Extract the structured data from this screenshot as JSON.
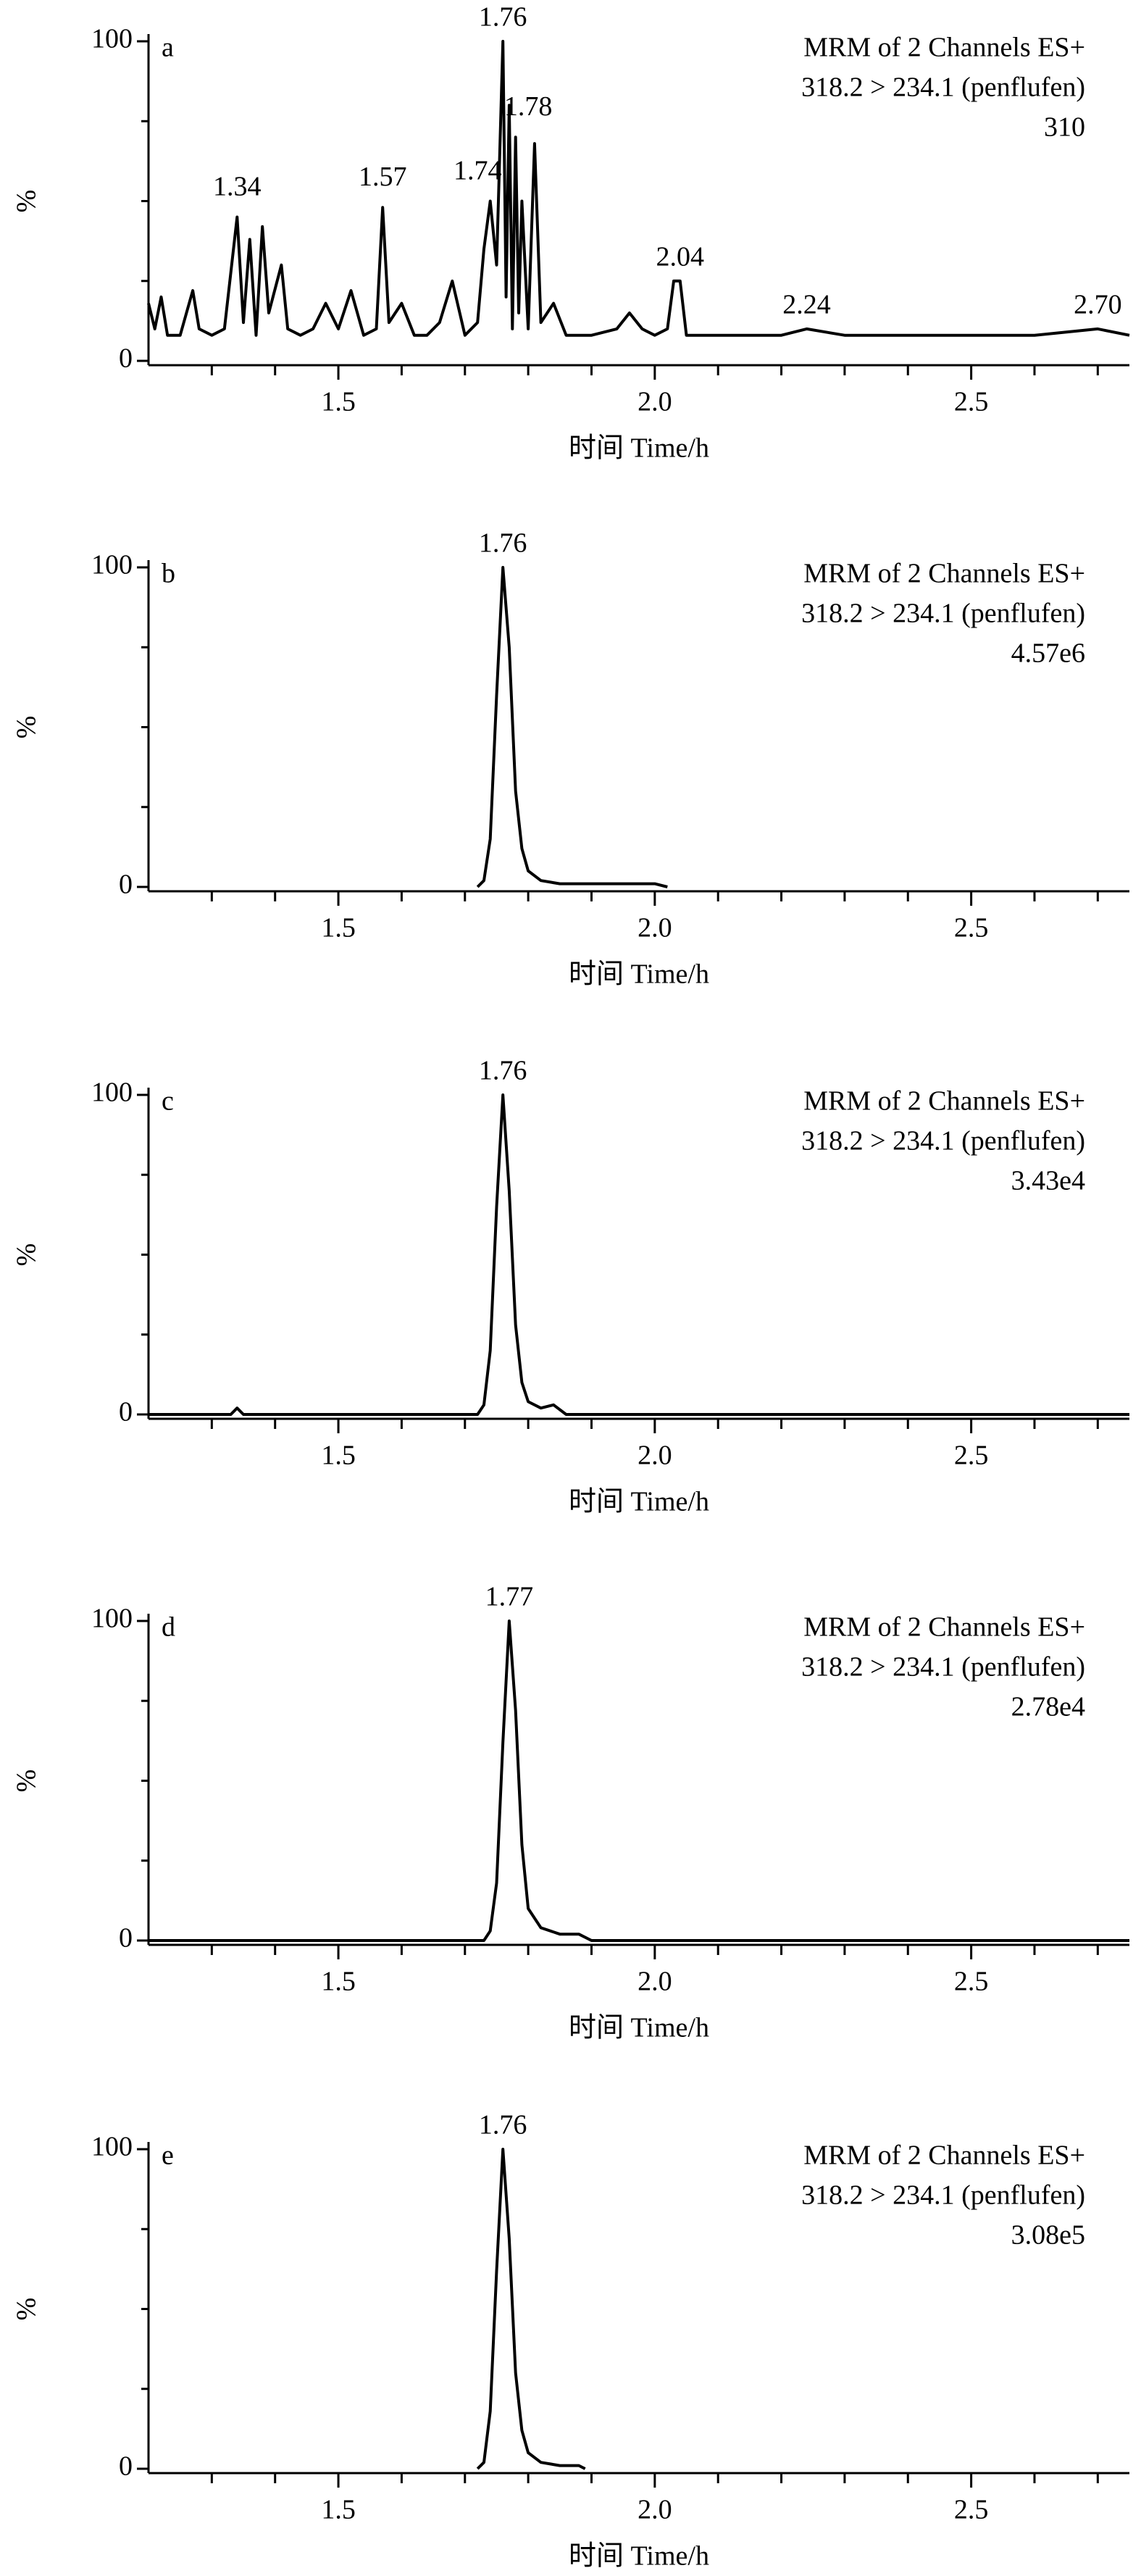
{
  "chart_data": [
    {
      "type": "line",
      "title": "a",
      "info": [
        "MRM of 2 Channels ES+",
        "318.2 > 234.1 (penflufen)",
        "310"
      ],
      "ylabel": "%",
      "xlabel": "时间 Time/h",
      "color": "#000000",
      "xlim": [
        1.2,
        2.75
      ],
      "xticks": [
        1.5,
        {
          "value": 2,
          "label": "2.0"
        },
        2.5
      ],
      "xminorticks": [
        1.3,
        1.4,
        1.6,
        1.7,
        1.8,
        1.9,
        2.1,
        2.2,
        2.3,
        2.4,
        2.6,
        2.7
      ],
      "ylim": [
        0,
        100
      ],
      "yticks": [
        0,
        100
      ],
      "yminorticks": [
        25,
        50,
        75
      ],
      "x": [
        1.2,
        1.21,
        1.22,
        1.23,
        1.25,
        1.27,
        1.28,
        1.3,
        1.32,
        1.34,
        1.35,
        1.36,
        1.37,
        1.38,
        1.39,
        1.41,
        1.42,
        1.44,
        1.46,
        1.48,
        1.5,
        1.52,
        1.54,
        1.56,
        1.57,
        1.58,
        1.6,
        1.62,
        1.64,
        1.66,
        1.68,
        1.7,
        1.72,
        1.73,
        1.74,
        1.75,
        1.76,
        1.765,
        1.77,
        1.775,
        1.78,
        1.785,
        1.79,
        1.8,
        1.81,
        1.82,
        1.84,
        1.86,
        1.9,
        1.94,
        1.96,
        1.98,
        2.0,
        2.02,
        2.03,
        2.04,
        2.05,
        2.1,
        2.2,
        2.24,
        2.3,
        2.4,
        2.5,
        2.6,
        2.7,
        2.75
      ],
      "values": [
        18,
        10,
        20,
        8,
        8,
        22,
        10,
        8,
        10,
        45,
        12,
        38,
        8,
        42,
        15,
        30,
        10,
        8,
        10,
        18,
        10,
        22,
        8,
        10,
        48,
        12,
        18,
        8,
        8,
        12,
        25,
        8,
        12,
        35,
        50,
        30,
        100,
        20,
        80,
        10,
        70,
        15,
        50,
        10,
        68,
        12,
        18,
        8,
        8,
        10,
        15,
        10,
        8,
        10,
        25,
        25,
        8,
        8,
        8,
        10,
        8,
        8,
        8,
        8,
        10,
        8
      ],
      "annotations": [
        {
          "text": "1.34",
          "x": 1.34,
          "y": 47
        },
        {
          "text": "1.57",
          "x": 1.57,
          "y": 50
        },
        {
          "text": "1.74",
          "x": 1.72,
          "y": 52
        },
        {
          "text": "1.76",
          "x": 1.76,
          "y": 100
        },
        {
          "text": "1.78",
          "x": 1.8,
          "y": 72
        },
        {
          "text": "2.04",
          "x": 2.04,
          "y": 25
        },
        {
          "text": "2.24",
          "x": 2.24,
          "y": 10
        },
        {
          "text": "2.70",
          "x": 2.7,
          "y": 10
        }
      ]
    },
    {
      "type": "line",
      "title": "b",
      "info": [
        "MRM of 2 Channels ES+",
        "318.2 > 234.1 (penflufen)",
        "4.57e6"
      ],
      "ylabel": "%",
      "xlabel": "时间 Time/h",
      "color": "#000000",
      "xlim": [
        1.2,
        2.75
      ],
      "xticks": [
        1.5,
        {
          "value": 2,
          "label": "2.0"
        },
        2.5
      ],
      "xminorticks": [
        1.3,
        1.4,
        1.6,
        1.7,
        1.8,
        1.9,
        2.1,
        2.2,
        2.3,
        2.4,
        2.6,
        2.7
      ],
      "ylim": [
        0,
        100
      ],
      "yticks": [
        0,
        100
      ],
      "yminorticks": [
        25,
        50,
        75
      ],
      "x": [
        1.72,
        1.73,
        1.74,
        1.75,
        1.76,
        1.77,
        1.78,
        1.79,
        1.8,
        1.82,
        1.85,
        1.9,
        2.0,
        2.02
      ],
      "values": [
        0,
        2,
        15,
        60,
        100,
        75,
        30,
        12,
        5,
        2,
        1,
        1,
        1,
        0
      ],
      "annotations": [
        {
          "text": "1.76",
          "x": 1.76,
          "y": 100
        }
      ]
    },
    {
      "type": "line",
      "title": "c",
      "info": [
        "MRM of 2 Channels ES+",
        "318.2 > 234.1 (penflufen)",
        "3.43e4"
      ],
      "ylabel": "%",
      "xlabel": "时间 Time/h",
      "color": "#000000",
      "xlim": [
        1.2,
        2.75
      ],
      "xticks": [
        1.5,
        {
          "value": 2,
          "label": "2.0"
        },
        2.5
      ],
      "xminorticks": [
        1.3,
        1.4,
        1.6,
        1.7,
        1.8,
        1.9,
        2.1,
        2.2,
        2.3,
        2.4,
        2.6,
        2.7
      ],
      "ylim": [
        0,
        100
      ],
      "yticks": [
        0,
        100
      ],
      "yminorticks": [
        25,
        50,
        75
      ],
      "x": [
        1.2,
        1.33,
        1.34,
        1.35,
        1.72,
        1.73,
        1.74,
        1.75,
        1.76,
        1.77,
        1.78,
        1.79,
        1.8,
        1.82,
        1.84,
        1.86,
        2.75
      ],
      "values": [
        0,
        0,
        2,
        0,
        0,
        3,
        20,
        65,
        100,
        70,
        28,
        10,
        4,
        2,
        3,
        0,
        0
      ],
      "annotations": [
        {
          "text": "1.76",
          "x": 1.76,
          "y": 100
        }
      ]
    },
    {
      "type": "line",
      "title": "d",
      "info": [
        "MRM of 2 Channels ES+",
        "318.2 > 234.1 (penflufen)",
        "2.78e4"
      ],
      "ylabel": "%",
      "xlabel": "时间 Time/h",
      "color": "#000000",
      "xlim": [
        1.2,
        2.75
      ],
      "xticks": [
        1.5,
        {
          "value": 2,
          "label": "2.0"
        },
        2.5
      ],
      "xminorticks": [
        1.3,
        1.4,
        1.6,
        1.7,
        1.8,
        1.9,
        2.1,
        2.2,
        2.3,
        2.4,
        2.6,
        2.7
      ],
      "ylim": [
        0,
        100
      ],
      "yticks": [
        0,
        100
      ],
      "yminorticks": [
        25,
        50,
        75
      ],
      "x": [
        1.2,
        1.73,
        1.74,
        1.75,
        1.76,
        1.77,
        1.78,
        1.79,
        1.8,
        1.82,
        1.85,
        1.88,
        1.9,
        2.75
      ],
      "values": [
        0,
        0,
        3,
        18,
        62,
        100,
        72,
        30,
        10,
        4,
        2,
        2,
        0,
        0
      ],
      "annotations": [
        {
          "text": "1.77",
          "x": 1.77,
          "y": 100
        }
      ]
    },
    {
      "type": "line",
      "title": "e",
      "info": [
        "MRM of 2 Channels ES+",
        "318.2 > 234.1 (penflufen)",
        "3.08e5"
      ],
      "ylabel": "%",
      "xlabel": "时间 Time/h",
      "color": "#000000",
      "xlim": [
        1.2,
        2.75
      ],
      "xticks": [
        1.5,
        {
          "value": 2,
          "label": "2.0"
        },
        2.5
      ],
      "xminorticks": [
        1.3,
        1.4,
        1.6,
        1.7,
        1.8,
        1.9,
        2.1,
        2.2,
        2.3,
        2.4,
        2.6,
        2.7
      ],
      "ylim": [
        0,
        100
      ],
      "yticks": [
        0,
        100
      ],
      "yminorticks": [
        25,
        50,
        75
      ],
      "x": [
        1.72,
        1.73,
        1.74,
        1.75,
        1.76,
        1.77,
        1.78,
        1.79,
        1.8,
        1.82,
        1.85,
        1.88,
        1.89
      ],
      "values": [
        0,
        2,
        18,
        62,
        100,
        72,
        30,
        12,
        5,
        2,
        1,
        1,
        0
      ],
      "annotations": [
        {
          "text": "1.76",
          "x": 1.76,
          "y": 100
        }
      ]
    }
  ]
}
